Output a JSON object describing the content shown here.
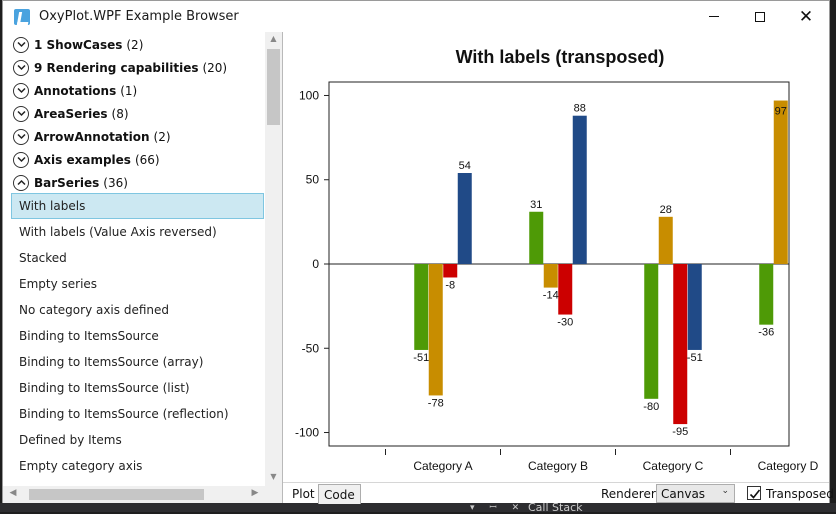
{
  "window": {
    "title": "OxyPlot.WPF Example Browser"
  },
  "background": {
    "call_stack_label": "Call Stack",
    "tab_glyphs": "▾ ꟷ ✕"
  },
  "tree": {
    "groups": [
      {
        "name": "1 ShowCases",
        "count": "(2)",
        "expanded": false
      },
      {
        "name": "9 Rendering capabilities",
        "count": "(20)",
        "expanded": false
      },
      {
        "name": "Annotations",
        "count": "(1)",
        "expanded": false
      },
      {
        "name": "AreaSeries",
        "count": "(8)",
        "expanded": false
      },
      {
        "name": "ArrowAnnotation",
        "count": "(2)",
        "expanded": false
      },
      {
        "name": "Axis examples",
        "count": "(66)",
        "expanded": false
      },
      {
        "name": "BarSeries",
        "count": "(36)",
        "expanded": true
      }
    ],
    "items": [
      {
        "label": "With labels",
        "selected": true
      },
      {
        "label": "With labels (Value Axis reversed)",
        "selected": false
      },
      {
        "label": "Stacked",
        "selected": false
      },
      {
        "label": "Empty series",
        "selected": false
      },
      {
        "label": "No category axis defined",
        "selected": false
      },
      {
        "label": "Binding to ItemsSource",
        "selected": false
      },
      {
        "label": "Binding to ItemsSource (array)",
        "selected": false
      },
      {
        "label": "Binding to ItemsSource (list)",
        "selected": false
      },
      {
        "label": "Binding to ItemsSource (reflection)",
        "selected": false
      },
      {
        "label": "Defined by Items",
        "selected": false
      },
      {
        "label": "Empty category axis",
        "selected": false
      }
    ]
  },
  "bottom_bar": {
    "tab_plot": "Plot",
    "tab_code": "Code",
    "renderer_label": "Renderer:",
    "renderer_value": "Canvas",
    "transposed_label": "Transposed",
    "transposed_checked": true
  },
  "chart_data": {
    "type": "bar",
    "title": "With labels (transposed)",
    "categories": [
      "Category A",
      "Category B",
      "Category C",
      "Category D"
    ],
    "series": [
      {
        "values": [
          -51,
          31,
          -80,
          -36
        ],
        "color": "#4e9a06"
      },
      {
        "values": [
          -78,
          -14,
          28,
          97
        ],
        "color": "#c88d00"
      },
      {
        "values": [
          -8,
          -30,
          -95,
          null
        ],
        "color": "#cc0000"
      },
      {
        "values": [
          54,
          88,
          -51,
          null
        ],
        "color": "#204a87"
      }
    ],
    "labels": [
      [
        "-51",
        "31",
        "-80",
        "-36"
      ],
      [
        "-78",
        "-14",
        "28",
        "97"
      ],
      [
        "-8",
        "-30",
        "-95",
        ""
      ],
      [
        "54",
        "88",
        "-51",
        ""
      ]
    ],
    "yticks": [
      100,
      50,
      0,
      -50,
      -100
    ],
    "ylim": [
      -108,
      108
    ],
    "xlabel": "",
    "ylabel": "",
    "legend": "none"
  }
}
